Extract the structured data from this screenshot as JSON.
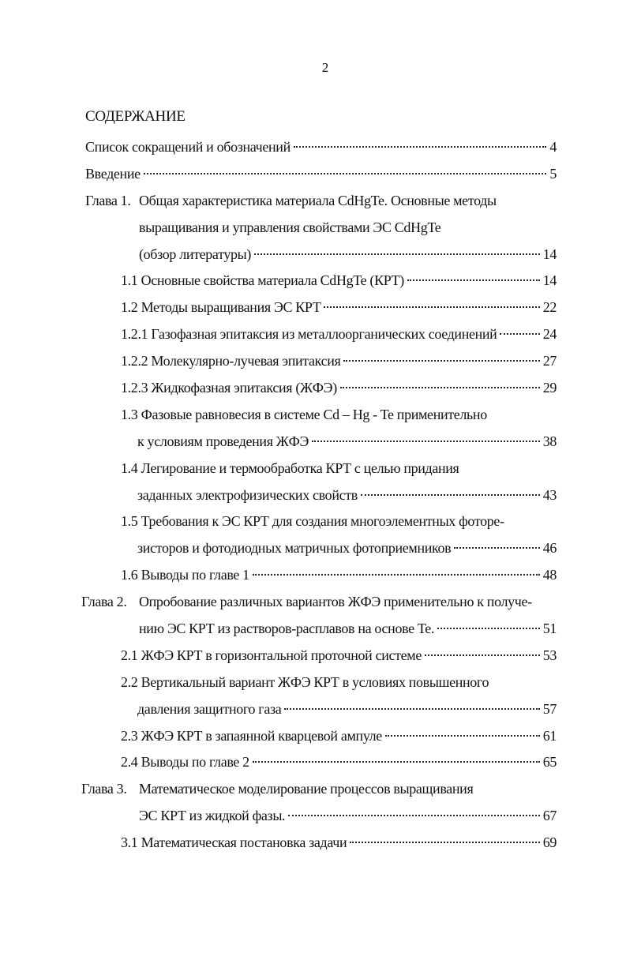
{
  "page_number": "2",
  "heading": "СОДЕРЖАНИЕ",
  "toc": [
    {
      "level": 0,
      "label": "",
      "lines": [
        "Список сокращений и обозначений"
      ],
      "page": "4"
    },
    {
      "level": 0,
      "label": "",
      "lines": [
        "Введение"
      ],
      "page": "5"
    },
    {
      "level": 0,
      "label": "Глава 1.",
      "lines": [
        "Общая характеристика материала CdHgTe. Основные методы",
        "выращивания и управления свойствами ЭС CdHgTe",
        "(обзор литературы)"
      ],
      "page": "14"
    },
    {
      "level": 1,
      "label": "",
      "lines": [
        "1.1 Основные свойства материала CdHgTe (КРТ)"
      ],
      "page": "14"
    },
    {
      "level": 1,
      "label": "",
      "lines": [
        "1.2 Методы выращивания ЭС КРТ"
      ],
      "page": "22"
    },
    {
      "level": 1,
      "label": "",
      "lines": [
        "1.2.1 Газофазная эпитаксия из металлоорганических соединений"
      ],
      "page": "24"
    },
    {
      "level": 1,
      "label": "",
      "lines": [
        "1.2.2 Молекулярно-лучевая эпитаксия"
      ],
      "page": "27"
    },
    {
      "level": 1,
      "label": "",
      "lines": [
        "1.2.3 Жидкофазная эпитаксия (ЖФЭ)"
      ],
      "page": "29"
    },
    {
      "level": 1,
      "label": "",
      "lines": [
        "1.3 Фазовые равновесия в системе Cd – Hg - Te применительно",
        "к условиям проведения ЖФЭ"
      ],
      "page": "38"
    },
    {
      "level": 1,
      "label": "",
      "lines": [
        "1.4 Легирование и термообработка КРТ с целью придания",
        "заданных электрофизических свойств"
      ],
      "page": "43"
    },
    {
      "level": 1,
      "label": "",
      "lines": [
        "1.5 Требования к ЭС КРТ для создания многоэлементных фоторе-",
        "зисторов и фотодиодных матричных фотоприемников"
      ],
      "page": "46"
    },
    {
      "level": 1,
      "label": "",
      "lines": [
        "1.6 Выводы по главе 1"
      ],
      "page": "48"
    },
    {
      "level": 0,
      "label": "Глава 2.",
      "lines": [
        "Опробование различных вариантов ЖФЭ применительно к получе-",
        "нию ЭС КРТ из растворов-расплавов на основе Te."
      ],
      "page": "51"
    },
    {
      "level": 1,
      "label": "",
      "lines": [
        "2.1 ЖФЭ КРТ в горизонтальной проточной системе"
      ],
      "page": "53"
    },
    {
      "level": 1,
      "label": "",
      "lines": [
        "2.2 Вертикальный вариант ЖФЭ КРТ в условиях повышенного",
        "давления защитного газа"
      ],
      "page": "57"
    },
    {
      "level": 1,
      "label": "",
      "lines": [
        "2.3 ЖФЭ КРТ в запаянной кварцевой ампуле"
      ],
      "page": "61"
    },
    {
      "level": 1,
      "label": "",
      "lines": [
        "2.4 Выводы по главе 2"
      ],
      "page": "65"
    },
    {
      "level": 0,
      "label": "Глава 3.",
      "lines": [
        "Математическое моделирование процессов выращивания",
        "ЭС КРТ из жидкой фазы."
      ],
      "page": "67"
    },
    {
      "level": 1,
      "label": "",
      "lines": [
        "3.1 Математическая постановка задачи"
      ],
      "page": "69"
    }
  ]
}
